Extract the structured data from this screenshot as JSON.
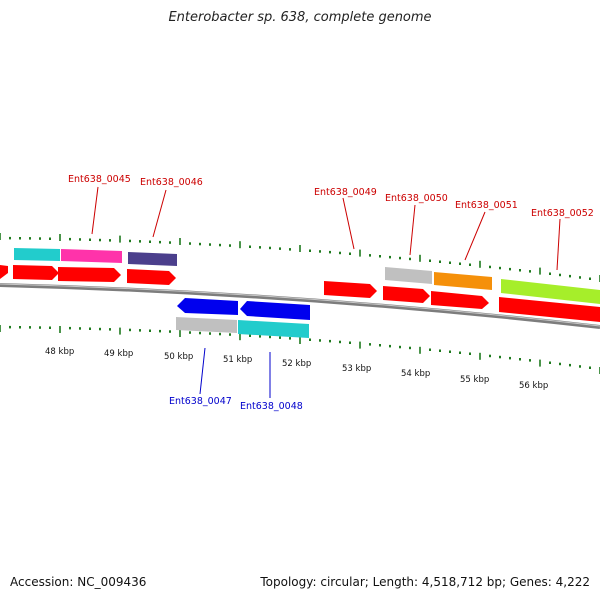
{
  "title": "Enterobacter sp. 638, complete genome",
  "footer": {
    "accession": "Accession: NC_009436",
    "summary": "Topology: circular; Length: 4,518,712 bp; Genes: 4,222"
  },
  "colors": {
    "backbone": "#8a8a8a",
    "tick": "#1e7a1e",
    "forward_label": "#cc0000",
    "reverse_label": "#0000cc",
    "arrow_red": "#ff0000",
    "arrow_blue": "#0000ee"
  },
  "scale_labels": [
    "48 kbp",
    "49 kbp",
    "50 kbp",
    "51 kbp",
    "52 kbp",
    "53 kbp",
    "54 kbp",
    "55 kbp",
    "56 kbp"
  ],
  "genes_forward": [
    {
      "label": "Ent638_0045",
      "color": "#ff33aa"
    },
    {
      "label": "Ent638_0046",
      "color": "#4b3f8c"
    },
    {
      "label": "Ent638_0049",
      "color": "#ff0000"
    },
    {
      "label": "Ent638_0050",
      "color": "#c0c0c0"
    },
    {
      "label": "Ent638_0051",
      "color": "#f5900a"
    },
    {
      "label": "Ent638_0052",
      "color": "#a6ee2a"
    }
  ],
  "genes_reverse": [
    {
      "label": "Ent638_0047",
      "color": "#c0c0c0"
    },
    {
      "label": "Ent638_0048",
      "color": "#22cccc"
    }
  ],
  "edge_feature_color": "#22cccc"
}
